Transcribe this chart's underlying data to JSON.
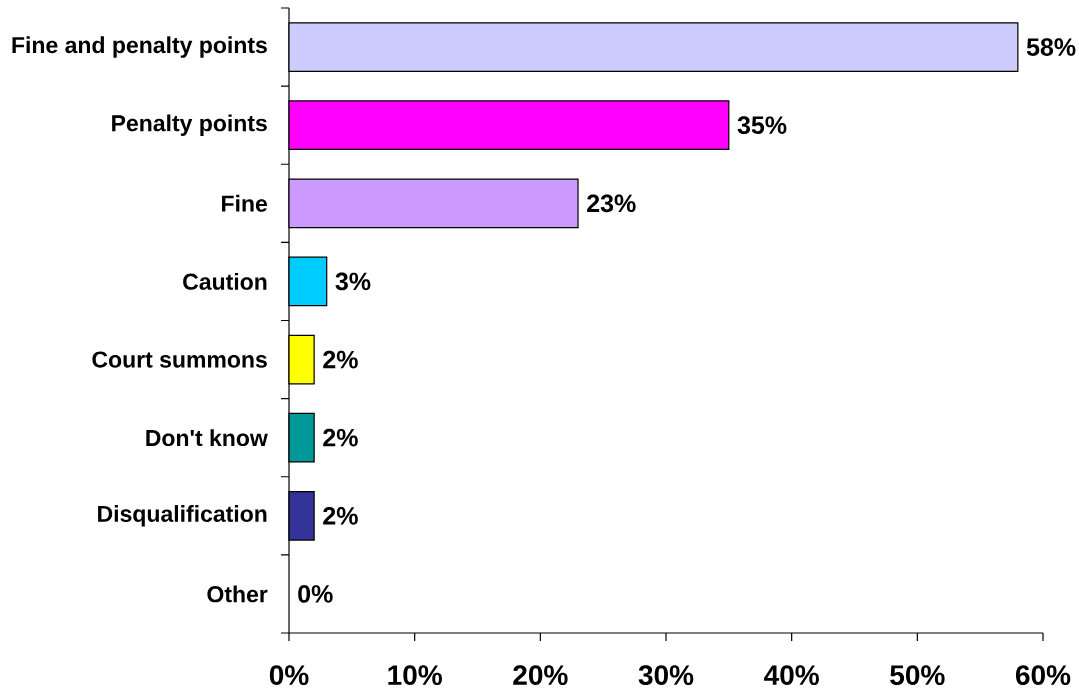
{
  "chart_data": {
    "type": "bar",
    "orientation": "horizontal",
    "categories": [
      "Fine and penalty points",
      "Penalty points",
      "Fine",
      "Caution",
      "Court summons",
      "Don't know",
      "Disqualification",
      "Other"
    ],
    "values": [
      58,
      35,
      23,
      3,
      2,
      2,
      2,
      0
    ],
    "colors": [
      "#ccccff",
      "#ff00ff",
      "#cc99ff",
      "#00ccff",
      "#ffff00",
      "#009999",
      "#333399",
      null
    ],
    "value_labels": [
      "58%",
      "35%",
      "23%",
      "3%",
      "2%",
      "2%",
      "2%",
      "0%"
    ],
    "xlim": [
      0,
      60
    ],
    "xticks": [
      {
        "value": 0,
        "label": "0%"
      },
      {
        "value": 10,
        "label": "10%"
      },
      {
        "value": 20,
        "label": "20%"
      },
      {
        "value": 30,
        "label": "30%"
      },
      {
        "value": 40,
        "label": "40%"
      },
      {
        "value": 50,
        "label": "50%"
      },
      {
        "value": 60,
        "label": "60%"
      }
    ]
  }
}
